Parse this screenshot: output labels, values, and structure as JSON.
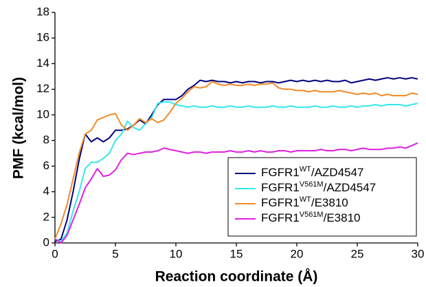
{
  "chart_data": {
    "type": "line",
    "xlabel": "Reaction coordinate (Å)",
    "ylabel": "PMF (kcal/mol)",
    "x": [
      0,
      0.5,
      1,
      1.5,
      2,
      2.5,
      3,
      3.5,
      4,
      4.5,
      5,
      5.5,
      6,
      6.5,
      7,
      7.5,
      8,
      8.5,
      9,
      9.5,
      10,
      10.5,
      11,
      11.5,
      12,
      12.5,
      13,
      13.5,
      14,
      14.5,
      15,
      15.5,
      16,
      16.5,
      17,
      17.5,
      18,
      18.5,
      19,
      19.5,
      20,
      20.5,
      21,
      21.5,
      22,
      22.5,
      23,
      23.5,
      24,
      24.5,
      25,
      25.5,
      26,
      26.5,
      27,
      27.5,
      28,
      28.5,
      29,
      29.5,
      30
    ],
    "series": [
      {
        "name": [
          {
            "text": "FGFR1"
          },
          {
            "text": "WT",
            "sup": true
          },
          {
            "text": "/AZD4547"
          }
        ],
        "color": "#000080",
        "values": [
          0.1,
          0.3,
          1.8,
          4,
          6.5,
          8.5,
          7.9,
          8.2,
          7.9,
          8.2,
          8.8,
          8.8,
          8.9,
          9.2,
          9.6,
          9.3,
          10,
          10.8,
          11.2,
          11.2,
          11.2,
          11.5,
          12,
          12.3,
          12.7,
          12.6,
          12.7,
          12.6,
          12.6,
          12.5,
          12.6,
          12.5,
          12.6,
          12.6,
          12.5,
          12.6,
          12.6,
          12.5,
          12.6,
          12.7,
          12.6,
          12.7,
          12.6,
          12.7,
          12.6,
          12.7,
          12.6,
          12.6,
          12.7,
          12.5,
          12.6,
          12.7,
          12.8,
          12.7,
          12.8,
          12.9,
          12.8,
          12.9,
          12.8,
          12.9,
          12.8
        ]
      },
      {
        "name": [
          {
            "text": "FGFR1"
          },
          {
            "text": "V561M",
            "sup": true
          },
          {
            "text": "/AZD4547"
          }
        ],
        "color": "#33e8ee",
        "values": [
          0.3,
          0.1,
          0.8,
          2.5,
          4,
          5.8,
          6.3,
          6.3,
          6.6,
          7,
          8,
          8.5,
          9.5,
          9,
          8.8,
          9.3,
          9.8,
          10.9,
          11,
          11,
          10.8,
          10.7,
          10.6,
          10.7,
          10.6,
          10.6,
          10.7,
          10.6,
          10.6,
          10.7,
          10.6,
          10.6,
          10.7,
          10.6,
          10.6,
          10.6,
          10.7,
          10.6,
          10.6,
          10.7,
          10.6,
          10.6,
          10.6,
          10.7,
          10.6,
          10.6,
          10.7,
          10.6,
          10.6,
          10.7,
          10.6,
          10.7,
          10.7,
          10.8,
          10.7,
          10.8,
          10.8,
          10.8,
          10.7,
          10.8,
          10.9
        ]
      },
      {
        "name": [
          {
            "text": "FGFR1"
          },
          {
            "text": "WT",
            "sup": true
          },
          {
            "text": "/E3810"
          }
        ],
        "color": "#f08a24",
        "values": [
          0.3,
          1.5,
          3,
          5,
          7,
          8.5,
          8.8,
          9.6,
          9.8,
          10,
          10.1,
          9.2,
          8.8,
          9.2,
          9.7,
          9.4,
          9.7,
          9.4,
          9.6,
          10.2,
          10.9,
          11.3,
          11.8,
          12.2,
          12.1,
          12.2,
          12.6,
          12.4,
          12.3,
          12.4,
          12.3,
          12.3,
          12.4,
          12.3,
          12.4,
          12.4,
          12.5,
          12.1,
          12,
          12,
          11.9,
          11.9,
          11.8,
          11.9,
          11.8,
          11.8,
          11.8,
          11.9,
          11.8,
          11.7,
          11.6,
          11.7,
          11.6,
          11.7,
          11.5,
          11.6,
          11.5,
          11.5,
          11.5,
          11.7,
          11.6
        ]
      },
      {
        "name": [
          {
            "text": "FGFR1"
          },
          {
            "text": "V561M",
            "sup": true
          },
          {
            "text": "/E3810"
          }
        ],
        "color": "#e020e0",
        "values": [
          0.3,
          0,
          0.6,
          1.8,
          3,
          4.3,
          5,
          5.8,
          5.2,
          5.3,
          5.7,
          6.5,
          7,
          6.9,
          7,
          7.1,
          7.1,
          7.2,
          7.4,
          7.3,
          7.2,
          7.1,
          7,
          7.1,
          7.1,
          7,
          7.1,
          7.1,
          7.1,
          7.2,
          7.1,
          7.1,
          7.2,
          7.1,
          7.2,
          7.1,
          7.1,
          7.2,
          7.2,
          7.1,
          7.2,
          7.2,
          7.2,
          7.2,
          7.3,
          7.2,
          7.2,
          7.3,
          7.3,
          7.2,
          7.3,
          7.4,
          7.3,
          7.3,
          7.3,
          7.4,
          7.4,
          7.5,
          7.4,
          7.6,
          7.8
        ]
      }
    ],
    "xlim": [
      0,
      30
    ],
    "xticks": [
      0,
      5,
      10,
      15,
      20,
      25,
      30
    ],
    "ylim": [
      0,
      18
    ],
    "yticks": [
      0,
      2,
      4,
      6,
      8,
      10,
      12,
      14,
      16,
      18
    ],
    "grid": false,
    "legend": "lower right"
  }
}
